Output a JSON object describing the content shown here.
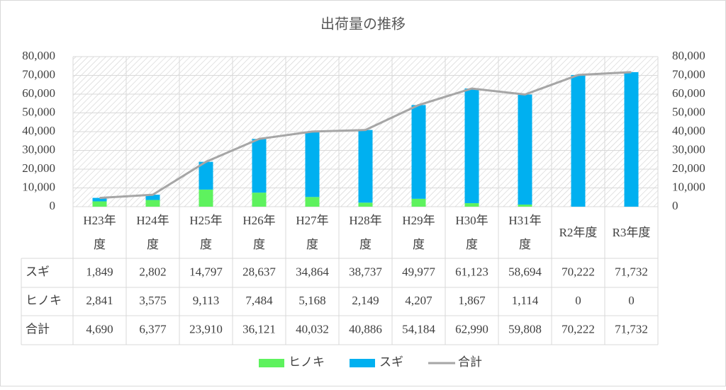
{
  "chart_data": {
    "type": "bar",
    "stacked": true,
    "title": "出荷量の推移",
    "categories": [
      "H23年度",
      "H24年度",
      "H25年度",
      "H26年度",
      "H27年度",
      "H28年度",
      "H29年度",
      "H30年度",
      "H31年度",
      "R2年度",
      "R3年度"
    ],
    "series": [
      {
        "name": "ヒノキ",
        "color": "#5ef25e",
        "values": [
          2841,
          3575,
          9113,
          7484,
          5168,
          2149,
          4207,
          1867,
          1114,
          0,
          0
        ],
        "value_labels": [
          "2,841",
          "3,575",
          "9,113",
          "7,484",
          "5,168",
          "2,149",
          "4,207",
          "1,867",
          "1,114",
          "0",
          "0"
        ]
      },
      {
        "name": "スギ",
        "color": "#00b0f0",
        "values": [
          1849,
          2802,
          14797,
          28637,
          34864,
          38737,
          49977,
          61123,
          58694,
          70222,
          71732
        ],
        "value_labels": [
          "1,849",
          "2,802",
          "14,797",
          "28,637",
          "34,864",
          "38,737",
          "49,977",
          "61,123",
          "58,694",
          "70,222",
          "71,732"
        ]
      },
      {
        "name": "合計",
        "type": "line",
        "axis": "y2",
        "color": "#a6a6a6",
        "values": [
          4690,
          6377,
          23910,
          36121,
          40032,
          40886,
          54184,
          62990,
          59808,
          70222,
          71732
        ],
        "value_labels": [
          "4,690",
          "6,377",
          "23,910",
          "36,121",
          "40,032",
          "40,886",
          "54,184",
          "62,990",
          "59,808",
          "70,222",
          "71,732"
        ]
      }
    ],
    "ylim": [
      0,
      80000
    ],
    "yticks": [
      0,
      {
        "value": 10000,
        "label": "10,000"
      },
      {
        "value": 20000,
        "label": "20,000"
      },
      {
        "value": 30000,
        "label": "30,000"
      },
      {
        "value": 40000,
        "label": "40,000"
      },
      {
        "value": 50000,
        "label": "50,000"
      },
      {
        "value": 60000,
        "label": "60,000"
      },
      {
        "value": 70000,
        "label": "70,000"
      },
      {
        "value": 80000,
        "label": "80,000"
      }
    ],
    "y2lim": [
      0,
      80000
    ],
    "y2ticks": [
      0,
      {
        "value": 10000,
        "label": "10,000"
      },
      {
        "value": 20000,
        "label": "20,000"
      },
      {
        "value": 30000,
        "label": "30,000"
      },
      {
        "value": 40000,
        "label": "40,000"
      },
      {
        "value": 50000,
        "label": "50,000"
      },
      {
        "value": 60000,
        "label": "60,000"
      },
      {
        "value": 70000,
        "label": "70,000"
      },
      {
        "value": 80000,
        "label": "80,000"
      }
    ],
    "legend": "bottom",
    "data_table": true
  }
}
